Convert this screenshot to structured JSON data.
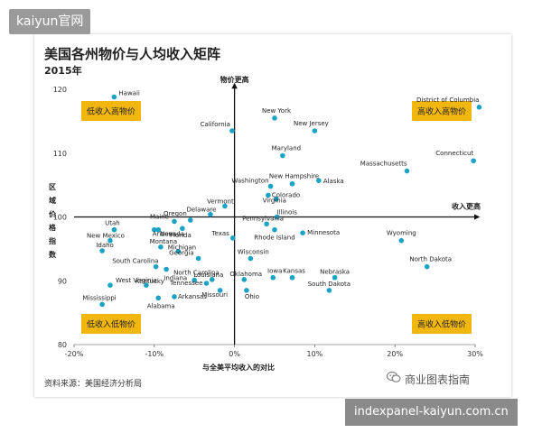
{
  "watermark_top": "kaiyun官网",
  "watermark_bottom": "indexpanel-kaiyun.com.cn",
  "wechat_label": "商业图表指南",
  "chart_data": {
    "type": "scatter",
    "title": "美国各州物价与人均收入矩阵",
    "subtitle": "2015年",
    "xlabel": "与全美平均收入的对比",
    "ylabel": "区域价格指数",
    "y_axis_title": "物价更高",
    "x_axis_title": "收入更高",
    "source": "资料来源：美国经济分析局",
    "xlim": [
      -20,
      30
    ],
    "ylim": [
      80,
      120
    ],
    "x_ticks": [
      -20,
      -10,
      0,
      10,
      20,
      30
    ],
    "x_tick_labels": [
      "-20%",
      "-10%",
      "0%",
      "10%",
      "20%",
      "30%"
    ],
    "y_ticks": [
      80,
      90,
      100,
      110,
      120
    ],
    "y_tick_labels": [
      "80",
      "90",
      "100",
      "110",
      "120"
    ],
    "point_color": "#1ba3c6",
    "quadrants": [
      {
        "label": "低收入高物价",
        "corner": "top-left"
      },
      {
        "label": "高收入高物价",
        "corner": "top-right"
      },
      {
        "label": "低收入低物价",
        "corner": "bottom-left"
      },
      {
        "label": "高收入低物价",
        "corner": "bottom-right"
      }
    ],
    "points": [
      {
        "name": "Hawaii",
        "x": -15,
        "y": 118.8
      },
      {
        "name": "California",
        "x": -0.3,
        "y": 113.5
      },
      {
        "name": "New York",
        "x": 5,
        "y": 115.5
      },
      {
        "name": "New Jersey",
        "x": 10,
        "y": 113.5
      },
      {
        "name": "District of Columbia",
        "x": 30.5,
        "y": 117.2
      },
      {
        "name": "Maryland",
        "x": 6,
        "y": 109.6
      },
      {
        "name": "Connecticut",
        "x": 29.8,
        "y": 108.8
      },
      {
        "name": "Massachusetts",
        "x": 21.5,
        "y": 107.2
      },
      {
        "name": "New Hampshire",
        "x": 7.2,
        "y": 105.2
      },
      {
        "name": "Alaska",
        "x": 10.5,
        "y": 105.7
      },
      {
        "name": "Washington",
        "x": 4.5,
        "y": 104.8
      },
      {
        "name": "Vermont",
        "x": -1.2,
        "y": 101.7
      },
      {
        "name": "Colorado",
        "x": 4.2,
        "y": 103.4
      },
      {
        "name": "Virginia",
        "x": 5.2,
        "y": 102.8
      },
      {
        "name": "Delaware",
        "x": -3,
        "y": 100.4
      },
      {
        "name": "Illinois",
        "x": 5.3,
        "y": 100
      },
      {
        "name": "Oregon",
        "x": -5.5,
        "y": 99.5
      },
      {
        "name": "Maine",
        "x": -7.5,
        "y": 99.3
      },
      {
        "name": "Pennsylvania",
        "x": 4,
        "y": 98.9
      },
      {
        "name": "Florida",
        "x": -6.5,
        "y": 98.2
      },
      {
        "name": "Utah",
        "x": -15,
        "y": 98
      },
      {
        "name": "Nevada",
        "x": -9.5,
        "y": 98
      },
      {
        "name": "Arizona",
        "x": -10,
        "y": 98
      },
      {
        "name": "Rhode Island",
        "x": 5,
        "y": 98
      },
      {
        "name": "Minnesota",
        "x": 8.5,
        "y": 97.5
      },
      {
        "name": "Texas",
        "x": -0.2,
        "y": 96.7
      },
      {
        "name": "Wyoming",
        "x": 20.8,
        "y": 96.3
      },
      {
        "name": "New Mexico",
        "x": -15.5,
        "y": 96.3
      },
      {
        "name": "Montana",
        "x": -9.2,
        "y": 95.3
      },
      {
        "name": "Idaho",
        "x": -16.5,
        "y": 94.7
      },
      {
        "name": "Michigan",
        "x": -7,
        "y": 94.6
      },
      {
        "name": "Wisconsin",
        "x": 2,
        "y": 93.5
      },
      {
        "name": "Georgia",
        "x": -4.5,
        "y": 93.5
      },
      {
        "name": "North Dakota",
        "x": 24,
        "y": 92.2
      },
      {
        "name": "South Carolina",
        "x": -9.8,
        "y": 92.2
      },
      {
        "name": "North Carolina",
        "x": -8.5,
        "y": 91.8
      },
      {
        "name": "Kansas",
        "x": 7.2,
        "y": 90.5
      },
      {
        "name": "Nebraska",
        "x": 12.5,
        "y": 90.5
      },
      {
        "name": "Iowa",
        "x": 4.8,
        "y": 90.5
      },
      {
        "name": "Oklahoma",
        "x": 1.2,
        "y": 90.2
      },
      {
        "name": "Louisiana",
        "x": -2.8,
        "y": 90.2
      },
      {
        "name": "Indiana",
        "x": -5,
        "y": 90.1
      },
      {
        "name": "Tennessee",
        "x": -3.5,
        "y": 89.6
      },
      {
        "name": "West Virginia",
        "x": -15.5,
        "y": 89.3
      },
      {
        "name": "Kentucky",
        "x": -11,
        "y": 89.3
      },
      {
        "name": "South Dakota",
        "x": 11.8,
        "y": 88.5
      },
      {
        "name": "Ohio",
        "x": 1.5,
        "y": 88.5
      },
      {
        "name": "Missouri",
        "x": -1.8,
        "y": 88.5
      },
      {
        "name": "Arkansas",
        "x": -7.5,
        "y": 87.5
      },
      {
        "name": "Alabama",
        "x": -9.5,
        "y": 87.3
      },
      {
        "name": "Mississippi",
        "x": -16.5,
        "y": 86.3
      }
    ]
  }
}
